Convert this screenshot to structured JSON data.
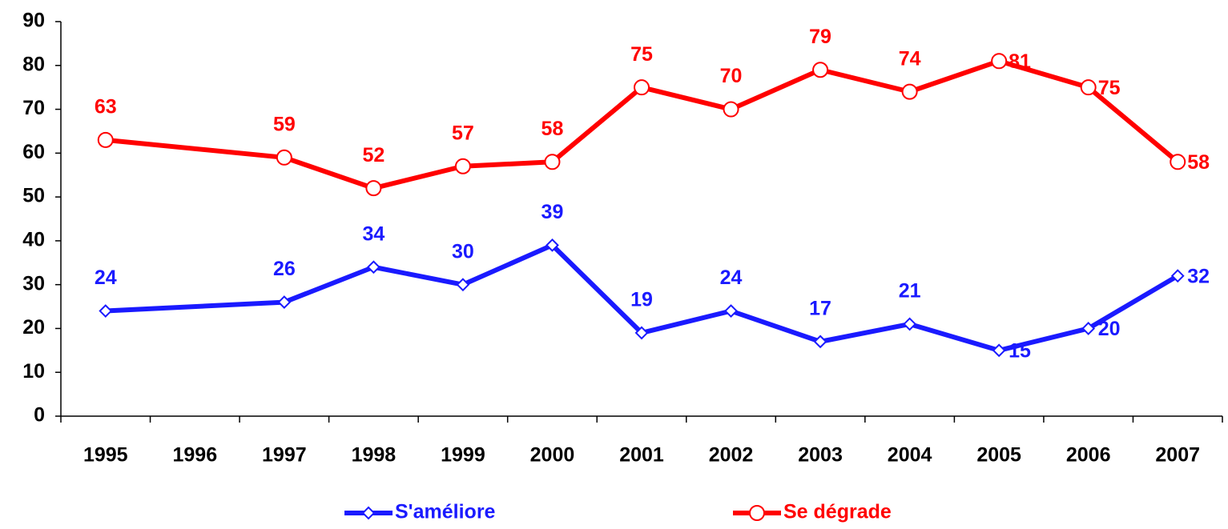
{
  "chart_data": {
    "type": "line",
    "categories": [
      "1995",
      "1996",
      "1997",
      "1998",
      "1999",
      "2000",
      "2001",
      "2002",
      "2003",
      "2004",
      "2005",
      "2006",
      "2007"
    ],
    "series": [
      {
        "name": "S'améliore",
        "color": "#1a1aff",
        "marker": "diamond",
        "values": [
          24,
          null,
          26,
          34,
          30,
          39,
          19,
          24,
          17,
          21,
          15,
          20,
          32
        ]
      },
      {
        "name": "Se dégrade",
        "color": "#ff0000",
        "marker": "circle",
        "values": [
          63,
          null,
          59,
          52,
          57,
          58,
          75,
          70,
          79,
          74,
          81,
          75,
          58
        ]
      }
    ],
    "ylim": [
      0,
      90
    ],
    "yticks": [
      0,
      10,
      20,
      30,
      40,
      50,
      60,
      70,
      80,
      90
    ],
    "grid": false,
    "connect_gaps": true,
    "legend": "bottom"
  }
}
